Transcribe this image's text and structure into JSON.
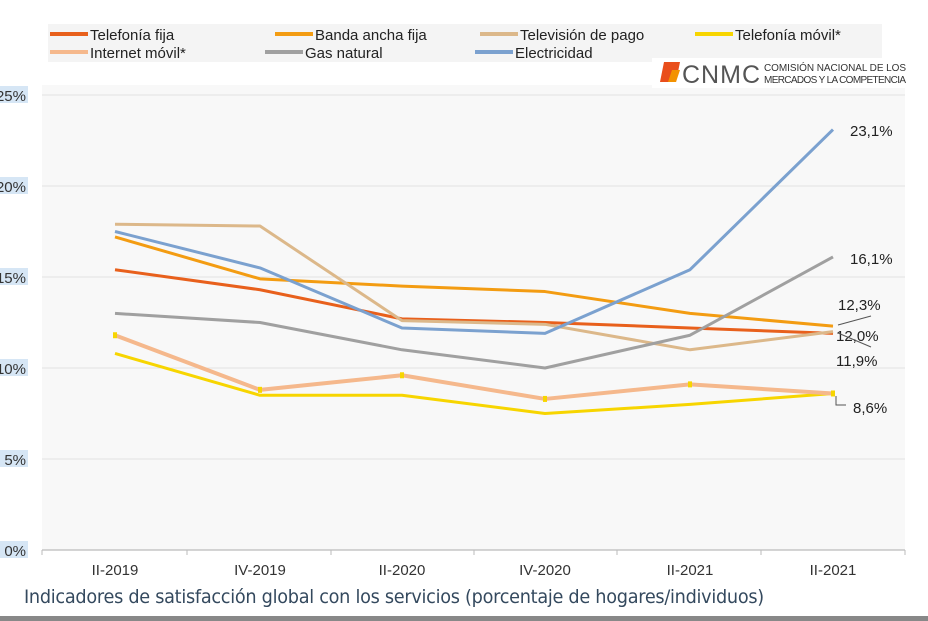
{
  "chart_data": {
    "type": "line",
    "categories": [
      "II-2019",
      "IV-2019",
      "II-2020",
      "IV-2020",
      "II-2021",
      "II-2021"
    ],
    "ylim": [
      0,
      25
    ],
    "yticks": [
      "0%",
      "5%",
      "10%",
      "15%",
      "20%",
      "25%"
    ],
    "ytick_values": [
      0,
      5,
      10,
      15,
      20,
      25
    ],
    "grid": true,
    "legend_placement": "top",
    "series": [
      {
        "name": "Telefonía fija",
        "color": "#e8601c",
        "values": [
          15.4,
          14.3,
          12.7,
          12.5,
          12.2,
          11.9
        ]
      },
      {
        "name": "Banda ancha fija",
        "color": "#f39c12",
        "values": [
          17.2,
          14.9,
          14.5,
          14.2,
          13.0,
          12.3
        ]
      },
      {
        "name": "Televisión de pago",
        "color": "#dcb88a",
        "values": [
          17.9,
          17.8,
          12.6,
          12.4,
          11.0,
          12.0
        ]
      },
      {
        "name": "Telefonía móvil*",
        "color": "#f7d500",
        "values": [
          10.8,
          8.5,
          8.5,
          7.5,
          8.0,
          8.6
        ]
      },
      {
        "name": "Internet móvil*",
        "color": "#f5b88c",
        "values": [
          11.8,
          8.8,
          9.6,
          8.3,
          9.1,
          8.6
        ]
      },
      {
        "name": "Gas natural",
        "color": "#a0a0a0",
        "values": [
          13.0,
          12.5,
          11.0,
          10.0,
          11.8,
          16.1
        ]
      },
      {
        "name": "Electricidad",
        "color": "#7ba1cf",
        "values": [
          17.5,
          15.5,
          12.2,
          11.9,
          15.4,
          23.1
        ]
      }
    ],
    "annotations": [
      "23,1%",
      "16,1%",
      "12,3%",
      "12,0%",
      "11,9%",
      "8,6%"
    ]
  },
  "logo": {
    "text": "CNMC",
    "line1": "COMISIÓN NACIONAL DE LOS",
    "line2": "MERCADOS Y LA COMPETENCIA"
  },
  "caption": "Indicadores de satisfacción global con los servicios (porcentaje de hogares/individuos)"
}
